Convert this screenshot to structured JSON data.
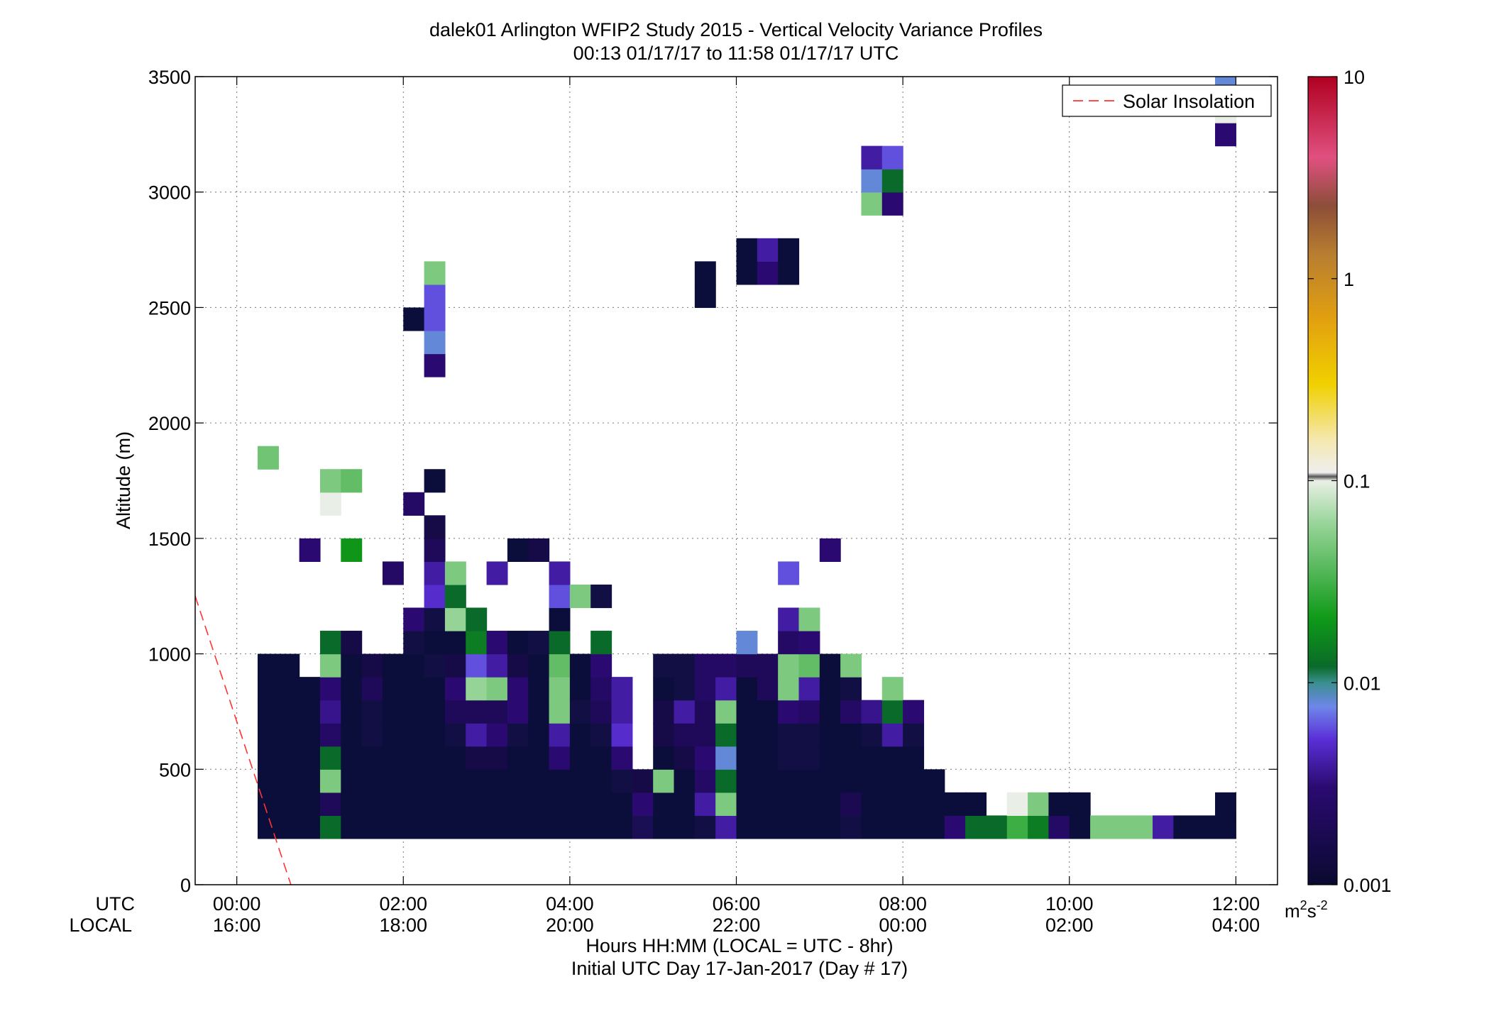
{
  "chart_data": {
    "type": "heatmap",
    "title": "dalek01 Arlington WFIP2 Study 2015 - Vertical Velocity Variance Profiles",
    "subtitle": "00:13 01/17/17 to 11:58 01/17/17  UTC",
    "ylabel": "Altitude (m)",
    "xlabel": "Hours HH:MM  (LOCAL = UTC - 8hr)",
    "xlabel2": "Initial UTC Day 17-Jan-2017 (Day # 17)",
    "x_row_labels": [
      "UTC",
      "LOCAL"
    ],
    "xlim": [
      -0.5,
      12.5
    ],
    "ylim": [
      0,
      3500
    ],
    "grid": true,
    "x_ticks": [
      {
        "value": 0,
        "utc": "00:00",
        "local": "16:00"
      },
      {
        "value": 2,
        "utc": "02:00",
        "local": "18:00"
      },
      {
        "value": 4,
        "utc": "04:00",
        "local": "20:00"
      },
      {
        "value": 6,
        "utc": "06:00",
        "local": "22:00"
      },
      {
        "value": 8,
        "utc": "08:00",
        "local": "00:00"
      },
      {
        "value": 10,
        "utc": "10:00",
        "local": "02:00"
      },
      {
        "value": 12,
        "utc": "12:00",
        "local": "04:00"
      }
    ],
    "y_ticks": [
      "0",
      "500",
      "1000",
      "1500",
      "2000",
      "2500",
      "3000",
      "3500"
    ],
    "colorbar": {
      "scale": "log",
      "min": 0.001,
      "max": 10,
      "tick_labels": [
        "0.001",
        "0.01",
        "0.1",
        "1",
        "10"
      ],
      "unit_label": "m",
      "unit_sup1": "2",
      "unit_mid": "s",
      "unit_sup2": "-2"
    },
    "legend": {
      "placement": "top-right",
      "entry": "Solar Insolation",
      "color": "#ff3333",
      "style": "dashed"
    },
    "solar_insolation_line": [
      [
        -0.5,
        1250
      ],
      [
        0.65,
        0
      ]
    ],
    "cell": {
      "dt": 0.25,
      "dz": 100
    },
    "columns": [
      {
        "t": 0.375,
        "z0": 200,
        "v": [
          1,
          1,
          1,
          1,
          1,
          1,
          1,
          1
        ],
        "sparse": [
          [
            1850,
            0.045
          ]
        ]
      },
      {
        "t": 0.625,
        "z0": 200,
        "v": [
          1,
          1,
          1,
          1,
          1,
          1,
          1,
          1
        ]
      },
      {
        "t": 0.875,
        "z0": 200,
        "v": [
          1,
          1,
          1,
          1,
          1,
          1,
          1
        ],
        "sparse": [
          [
            1450,
            0.003
          ]
        ]
      },
      {
        "t": 1.125,
        "z0": 200,
        "v": [
          0.012,
          0.002,
          0.05,
          0.012,
          0.0025,
          0.0035,
          0.003,
          0.05,
          0.012
        ],
        "sparse": [
          [
            1650,
            0.1
          ],
          [
            1750,
            0.05
          ]
        ]
      },
      {
        "t": 1.375,
        "z0": 200,
        "v": [
          1,
          1,
          1,
          1,
          1,
          1,
          1,
          1,
          0.0015
        ],
        "sparse": [
          [
            1450,
            0.02
          ],
          [
            1750,
            0.04
          ]
        ]
      },
      {
        "t": 1.625,
        "z0": 200,
        "v": [
          1,
          1,
          1,
          1,
          1.1,
          1.1,
          0.002,
          0.0015
        ]
      },
      {
        "t": 1.875,
        "z0": 200,
        "v": [
          1,
          1,
          1,
          1,
          1,
          1,
          1,
          1
        ],
        "sparse": [
          [
            1350,
            0.0025
          ]
        ]
      },
      {
        "t": 2.125,
        "z0": 200,
        "v": [
          1,
          1,
          1,
          1,
          1,
          1,
          1,
          1,
          1.1,
          0.003
        ],
        "sparse": [
          [
            1650,
            0.0025
          ],
          [
            2450,
            1
          ]
        ]
      },
      {
        "t": 2.375,
        "z0": 200,
        "v": [
          1,
          1,
          1,
          1,
          1,
          1,
          1,
          1.1,
          1,
          1.1,
          0.005,
          0.004,
          0.002,
          0.0015
        ],
        "sparse": [
          [
            1750,
            1
          ],
          [
            2250,
            0.003
          ],
          [
            2350,
            0.008
          ],
          [
            2450,
            0.006
          ],
          [
            2550,
            0.006
          ],
          [
            2650,
            0.05
          ]
        ]
      },
      {
        "t": 2.625,
        "z0": 200,
        "v": [
          1,
          1,
          1,
          1,
          1.1,
          0.002,
          0.003,
          0.0015,
          1,
          0.06,
          0.012,
          0.05
        ]
      },
      {
        "t": 2.875,
        "z0": 200,
        "v": [
          1,
          1,
          1,
          0.0015,
          0.004,
          0.002,
          0.06,
          0.006,
          0.015,
          0.012
        ]
      },
      {
        "t": 3.125,
        "z0": 200,
        "v": [
          1,
          1,
          1,
          0.0015,
          0.003,
          0.002,
          0.05,
          0.004,
          0.003
        ],
        "sparse": [
          [
            1350,
            0.004
          ]
        ]
      },
      {
        "t": 3.375,
        "z0": 200,
        "v": [
          1,
          1,
          1,
          1,
          1.1,
          0.003,
          0.003,
          0.0015,
          1
        ],
        "sparse": [
          [
            1450,
            1
          ]
        ]
      },
      {
        "t": 3.625,
        "z0": 200,
        "v": [
          1,
          1,
          1,
          1,
          1,
          1,
          1,
          1,
          1.1
        ],
        "sparse": [
          [
            1450,
            0.0015
          ]
        ]
      },
      {
        "t": 3.875,
        "z0": 200,
        "v": [
          1,
          1,
          1,
          0.003,
          0.004,
          0.05,
          0.05,
          0.04,
          0.012,
          1,
          0.006,
          0.004
        ]
      },
      {
        "t": 4.125,
        "z0": 200,
        "v": [
          1,
          1,
          1,
          1,
          1,
          1.1,
          1,
          1
        ],
        "sparse": [
          [
            1250,
            0.05
          ]
        ]
      },
      {
        "t": 4.375,
        "z0": 200,
        "v": [
          1,
          1,
          1,
          1,
          1.1,
          0.002,
          0.0025,
          0.003
        ],
        "sparse": [
          [
            1050,
            0.012
          ],
          [
            1250,
            1.1
          ]
        ]
      },
      {
        "t": 4.625,
        "z0": 200,
        "v": [
          1,
          1,
          1.1,
          0.003,
          0.005,
          0.004,
          0.004
        ]
      },
      {
        "t": 4.875,
        "z0": 200,
        "v": [
          1.5,
          0.003,
          0.0015
        ]
      },
      {
        "t": 5.125,
        "z0": 200,
        "v": [
          1,
          1,
          0.05,
          1,
          0.0015,
          0.0015,
          1,
          1.1
        ]
      },
      {
        "t": 5.375,
        "z0": 200,
        "v": [
          1,
          1,
          1,
          0.0015,
          0.002,
          0.004,
          1.1,
          1.1
        ]
      },
      {
        "t": 5.625,
        "z0": 200,
        "v": [
          1.1,
          0.004,
          0.0025,
          0.003,
          0.002,
          0.002,
          0.0025,
          0.0025
        ],
        "sparse": [
          [
            2550,
            1
          ],
          [
            2650,
            1
          ]
        ]
      },
      {
        "t": 5.875,
        "z0": 200,
        "v": [
          0.004,
          0.05,
          0.012,
          0.008,
          0.012,
          0.05,
          0.004,
          0.0025
        ]
      },
      {
        "t": 6.125,
        "z0": 200,
        "v": [
          1,
          1,
          1,
          1,
          1,
          1,
          1,
          0.002,
          0.008
        ],
        "sparse": [
          [
            2650,
            1
          ],
          [
            2750,
            1
          ]
        ]
      },
      {
        "t": 6.375,
        "z0": 200,
        "v": [
          1,
          1,
          1,
          1,
          1,
          1,
          0.002,
          0.002
        ],
        "sparse": [
          [
            2650,
            0.003
          ],
          [
            2750,
            0.004
          ]
        ]
      },
      {
        "t": 6.625,
        "z0": 200,
        "v": [
          1,
          1,
          1,
          1.1,
          1.1,
          0.003,
          0.05,
          0.05,
          0.0025,
          0.004
        ],
        "sparse": [
          [
            1350,
            0.006
          ],
          [
            2650,
            1
          ],
          [
            2750,
            1
          ]
        ]
      },
      {
        "t": 6.875,
        "z0": 200,
        "v": [
          1,
          1,
          1,
          1.1,
          1.1,
          0.0025,
          0.004,
          0.04,
          0.003,
          0.05
        ]
      },
      {
        "t": 7.125,
        "z0": 200,
        "v": [
          1,
          1,
          1,
          1,
          1,
          1,
          1,
          1
        ],
        "sparse": [
          [
            1450,
            0.003
          ]
        ]
      },
      {
        "t": 7.375,
        "z0": 200,
        "v": [
          1.1,
          0.0018,
          1,
          1,
          1,
          0.0025,
          1.1,
          0.05
        ]
      },
      {
        "t": 7.625,
        "z0": 200,
        "v": [
          1,
          1,
          1,
          1,
          1.1,
          0.0035
        ],
        "sparse": [
          [
            2950,
            0.05
          ],
          [
            3050,
            0.008
          ],
          [
            3150,
            0.004
          ]
        ]
      },
      {
        "t": 7.875,
        "z0": 200,
        "v": [
          1,
          1,
          1,
          1,
          0.004,
          0.012,
          0.05
        ],
        "sparse": [
          [
            2950,
            0.003
          ],
          [
            3050,
            0.012
          ],
          [
            3150,
            0.006
          ]
        ]
      },
      {
        "t": 8.125,
        "z0": 200,
        "v": [
          1,
          1,
          1,
          1,
          1.1,
          0.003
        ]
      },
      {
        "t": 8.375,
        "z0": 200,
        "v": [
          1,
          1,
          1
        ]
      },
      {
        "t": 8.625,
        "z0": 200,
        "v": [
          0.003,
          1
        ]
      },
      {
        "t": 8.875,
        "z0": 200,
        "v": [
          0.012,
          1
        ]
      },
      {
        "t": 9.125,
        "z0": 200,
        "v": [
          0.012
        ]
      },
      {
        "t": 9.375,
        "z0": 200,
        "v": [
          0.03,
          0.1
        ]
      },
      {
        "t": 9.625,
        "z0": 200,
        "v": [
          0.015,
          0.05
        ]
      },
      {
        "t": 9.875,
        "z0": 200,
        "v": [
          0.0025,
          1
        ]
      },
      {
        "t": 10.125,
        "z0": 200,
        "v": [
          1,
          1
        ]
      },
      {
        "t": 10.375,
        "z0": 200,
        "v": [
          0.05
        ]
      },
      {
        "t": 10.625,
        "z0": 200,
        "v": [
          0.05
        ]
      },
      {
        "t": 10.875,
        "z0": 200,
        "v": [
          0.05
        ]
      },
      {
        "t": 11.125,
        "z0": 200,
        "v": [
          0.004
        ]
      },
      {
        "t": 11.375,
        "z0": 200,
        "v": [
          1
        ]
      },
      {
        "t": 11.625,
        "z0": 200,
        "v": [
          1
        ]
      },
      {
        "t": 11.875,
        "z0": 200,
        "v": [
          1,
          1
        ],
        "sparse": [
          [
            3250,
            0.003
          ],
          [
            3350,
            0.1
          ],
          [
            3450,
            0.008
          ]
        ]
      }
    ]
  }
}
